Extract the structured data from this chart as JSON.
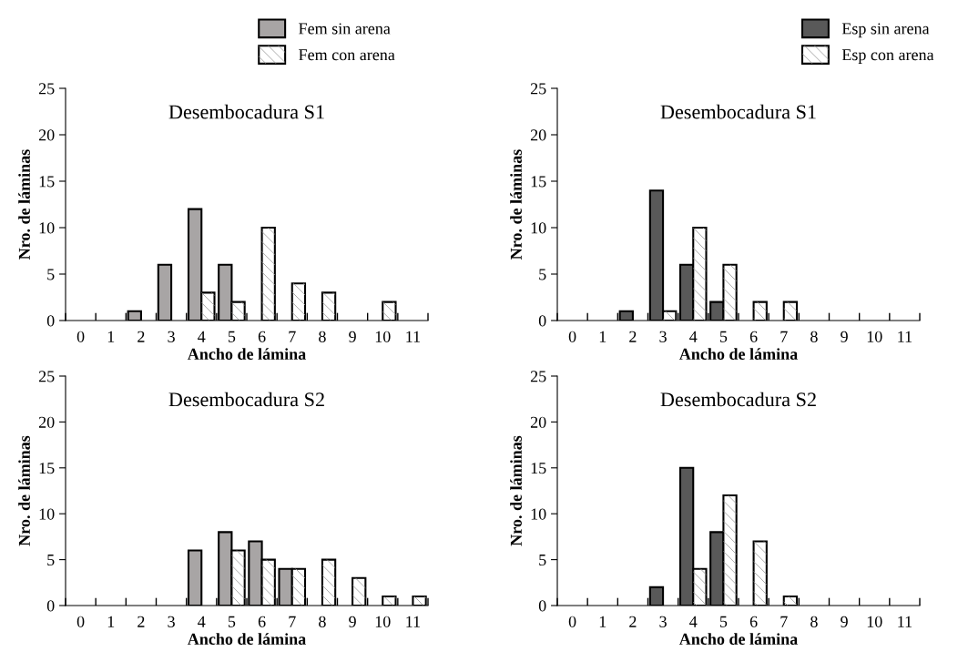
{
  "chart_data": [
    {
      "type": "bar",
      "title": "Desembocadura S1",
      "xlabel": "Ancho de lámina",
      "ylabel": "Nro. de láminas",
      "categories": [
        "0",
        "1",
        "2",
        "3",
        "4",
        "5",
        "6",
        "7",
        "8",
        "9",
        "10",
        "11"
      ],
      "ylim": [
        0,
        25
      ],
      "yticks": [
        0,
        5,
        10,
        15,
        20,
        25
      ],
      "legend": "top",
      "series": [
        {
          "name": "Fem sin arena",
          "color": "#a8a5a5",
          "values": [
            null,
            null,
            1,
            6,
            12,
            6,
            null,
            null,
            null,
            null,
            null,
            null
          ]
        },
        {
          "name": "Fem con arena",
          "color": "#ffffff",
          "values": [
            null,
            null,
            null,
            null,
            3,
            2,
            10,
            4,
            3,
            null,
            2,
            null
          ]
        }
      ]
    },
    {
      "type": "bar",
      "title": "Desembocadura S1",
      "xlabel": "Ancho de lámina",
      "ylabel": "Nro. de láminas",
      "categories": [
        "0",
        "1",
        "2",
        "3",
        "4",
        "5",
        "6",
        "7",
        "8",
        "9",
        "10",
        "11"
      ],
      "ylim": [
        0,
        25
      ],
      "yticks": [
        0,
        5,
        10,
        15,
        20,
        25
      ],
      "legend": "top right",
      "series": [
        {
          "name": "Esp sin arena",
          "color": "#595959",
          "values": [
            null,
            null,
            1,
            14,
            6,
            2,
            null,
            null,
            null,
            null,
            null,
            null
          ]
        },
        {
          "name": "Esp con arena",
          "color": "#ffffff",
          "values": [
            null,
            null,
            null,
            1,
            10,
            6,
            2,
            2,
            null,
            null,
            null,
            null
          ]
        }
      ]
    },
    {
      "type": "bar",
      "title": "Desembocadura S2",
      "xlabel": "Ancho de lámina",
      "ylabel": "Nro. de láminas",
      "categories": [
        "0",
        "1",
        "2",
        "3",
        "4",
        "5",
        "6",
        "7",
        "8",
        "9",
        "10",
        "11"
      ],
      "ylim": [
        0,
        25
      ],
      "yticks": [
        0,
        5,
        10,
        15,
        20,
        25
      ],
      "series": [
        {
          "color": "#a8a5a5",
          "values": [
            null,
            null,
            null,
            null,
            6,
            8,
            7,
            4,
            null,
            null,
            null,
            null
          ]
        },
        {
          "color": "#ffffff",
          "values": [
            null,
            null,
            null,
            null,
            null,
            6,
            5,
            4,
            5,
            3,
            1,
            1
          ]
        }
      ]
    },
    {
      "type": "bar",
      "title": "Desembocadura S2",
      "xlabel": "Ancho de lámina",
      "ylabel": "Nro. de láminas",
      "categories": [
        "0",
        "1",
        "2",
        "3",
        "4",
        "5",
        "6",
        "7",
        "8",
        "9",
        "10",
        "11"
      ],
      "ylim": [
        0,
        25
      ],
      "yticks": [
        0,
        5,
        10,
        15,
        20,
        25
      ],
      "series": [
        {
          "color": "#595959",
          "values": [
            null,
            null,
            null,
            2,
            15,
            8,
            null,
            null,
            null,
            null,
            null,
            null
          ]
        },
        {
          "color": "#ffffff",
          "values": [
            null,
            null,
            null,
            null,
            4,
            12,
            7,
            1,
            null,
            null,
            null,
            null
          ]
        }
      ]
    }
  ]
}
